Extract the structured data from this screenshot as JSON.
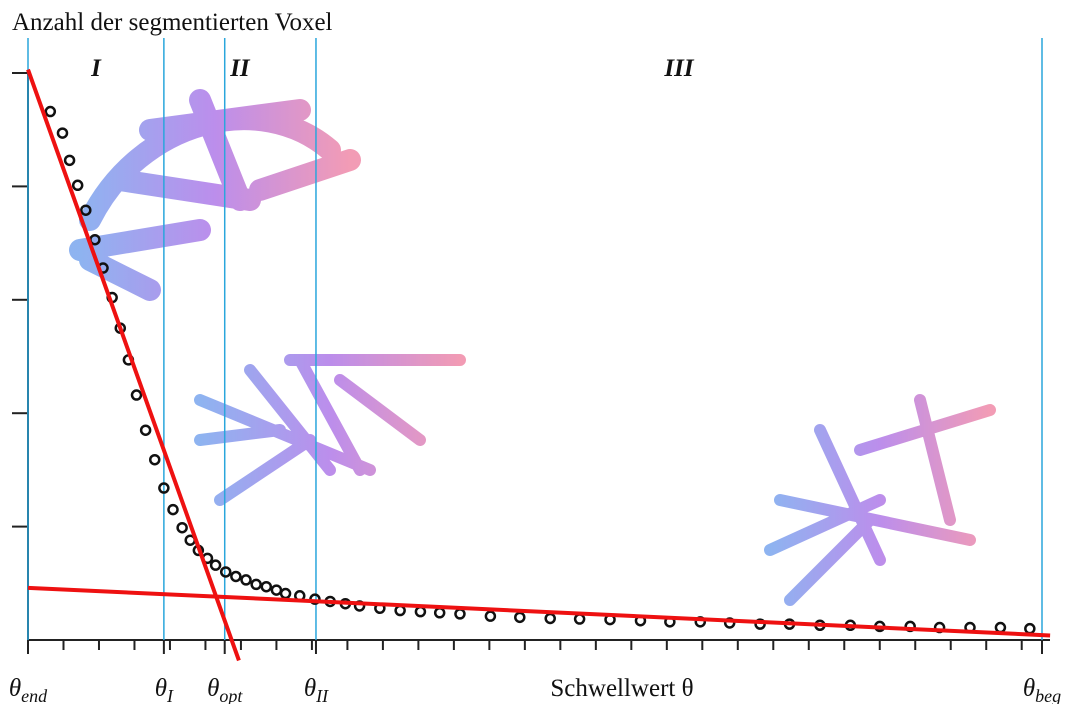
{
  "chart_data": {
    "type": "scatter",
    "title": "Anzahl der segmentierten Voxel",
    "x_label": "Schwellwert θ",
    "xlim": [
      0,
      100
    ],
    "ylim": [
      0,
      5
    ],
    "yticks": [
      1,
      2,
      3,
      4,
      5
    ],
    "xminorticks": [
      3.5,
      7,
      10.5,
      14,
      17.5,
      21,
      24.5,
      28,
      31.5,
      35,
      38.5,
      42,
      45.5,
      49,
      52.5,
      56,
      59.5,
      63,
      66.5,
      70,
      73.5,
      77,
      80.5,
      84,
      87.5,
      91,
      94.5,
      98
    ],
    "xticks": [
      {
        "value": 0,
        "label": "θ",
        "sub": "end"
      },
      {
        "value": 13.4,
        "label": "θ",
        "sub": "I"
      },
      {
        "value": 19.4,
        "label": "θ",
        "sub": "opt"
      },
      {
        "value": 28.4,
        "label": "θ",
        "sub": "II"
      },
      {
        "value": 100,
        "label": "θ",
        "sub": "beg"
      }
    ],
    "boundary_color": "#2aa6dc",
    "regions": [
      "I",
      "II",
      "III"
    ],
    "region_bounds": [
      [
        0,
        13.4
      ],
      [
        13.4,
        28.4
      ],
      [
        28.4,
        100
      ]
    ],
    "points": {
      "color": "#111111",
      "x": [
        2.2,
        3.4,
        4.1,
        4.9,
        5.7,
        6.6,
        7.4,
        8.3,
        9.1,
        9.9,
        10.7,
        11.6,
        12.5,
        13.4,
        14.3,
        15.2,
        16.0,
        16.8,
        17.7,
        18.5,
        19.5,
        20.5,
        21.5,
        22.5,
        23.5,
        24.5,
        25.4,
        26.8,
        28.3,
        29.8,
        31.3,
        32.7,
        34.7,
        36.7,
        38.7,
        40.6,
        42.6,
        45.6,
        48.5,
        51.5,
        54.4,
        57.4,
        60.4,
        63.3,
        66.3,
        69.2,
        72.2,
        75.1,
        78.1,
        81.1,
        84.0,
        87.0,
        89.9,
        92.9,
        95.9,
        98.8
      ],
      "y": [
        4.66,
        4.47,
        4.23,
        4.01,
        3.79,
        3.53,
        3.28,
        3.02,
        2.75,
        2.47,
        2.16,
        1.85,
        1.59,
        1.34,
        1.15,
        0.99,
        0.88,
        0.79,
        0.72,
        0.66,
        0.6,
        0.56,
        0.53,
        0.49,
        0.47,
        0.44,
        0.41,
        0.39,
        0.36,
        0.34,
        0.32,
        0.3,
        0.28,
        0.26,
        0.25,
        0.24,
        0.23,
        0.21,
        0.2,
        0.19,
        0.185,
        0.18,
        0.17,
        0.16,
        0.16,
        0.15,
        0.14,
        0.14,
        0.13,
        0.13,
        0.12,
        0.12,
        0.11,
        0.11,
        0.11,
        0.1
      ]
    },
    "fit_lines": [
      {
        "color": "#ee1111",
        "x": [
          0,
          20.8
        ],
        "y": [
          5.03,
          -0.18
        ]
      },
      {
        "color": "#ee1111",
        "x": [
          0,
          100.8
        ],
        "y": [
          0.46,
          0.04
        ]
      }
    ]
  }
}
